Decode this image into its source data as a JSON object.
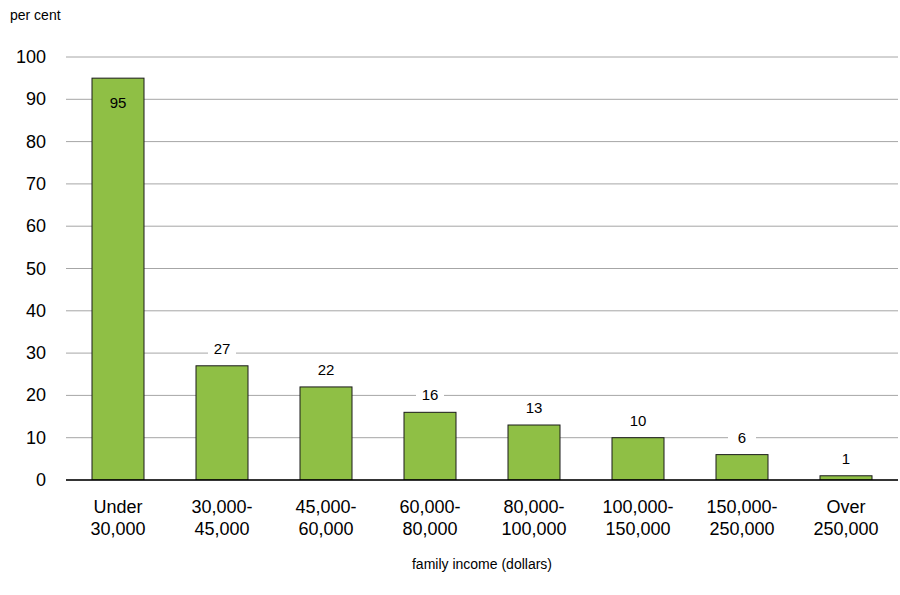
{
  "chart_data": {
    "type": "bar",
    "y_label": "per cent",
    "x_label": "family income (dollars)",
    "categories": [
      "Under\n30,000",
      "30,000-\n45,000",
      "45,000-\n60,000",
      "60,000-\n80,000",
      "80,000-\n100,000",
      "100,000-\n150,000",
      "150,000-\n250,000",
      "Over\n250,000"
    ],
    "values": [
      95,
      27,
      22,
      16,
      13,
      10,
      6,
      1
    ],
    "color": "#8fbf45",
    "ylim": [
      0,
      100
    ],
    "yticks": [
      0,
      10,
      20,
      30,
      40,
      50,
      60,
      70,
      80,
      90,
      100
    ],
    "grid": true,
    "data_labels": true
  }
}
